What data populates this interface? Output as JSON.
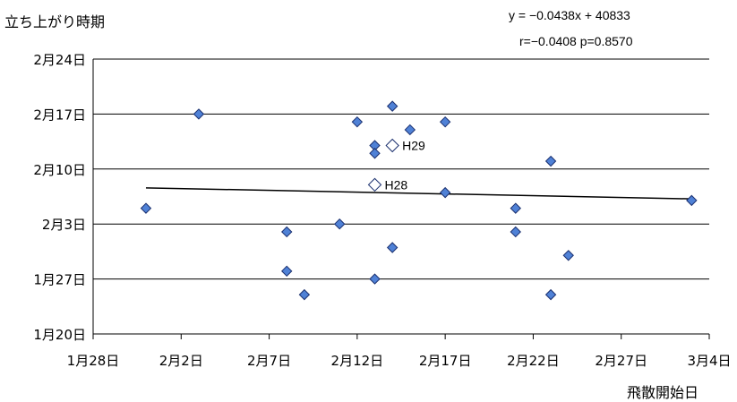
{
  "chart_data": {
    "type": "scatter",
    "ylabel": "立ち上がり時期",
    "xlabel": "飛散開始日",
    "equation": "y = −0.0438x + 40833",
    "stats": "r=−0.0408 p=0.8570",
    "x_ticks": [
      "1月28日",
      "2月2日",
      "2月7日",
      "2月12日",
      "2月17日",
      "2月22日",
      "2月27日",
      "3月4日"
    ],
    "y_ticks": [
      "2月24日",
      "2月17日",
      "2月10日",
      "2月3日",
      "1月27日",
      "1月20日"
    ],
    "xlim_days": [
      0,
      35
    ],
    "ylim_days": [
      0,
      35
    ],
    "x_axis_origin": "1月28日",
    "y_axis_origin": "1月20日",
    "grid": "horizontal",
    "points": [
      {
        "x": 3,
        "y": 16
      },
      {
        "x": 6,
        "y": 28
      },
      {
        "x": 11,
        "y": 13
      },
      {
        "x": 11,
        "y": 8
      },
      {
        "x": 12,
        "y": 5
      },
      {
        "x": 14,
        "y": 14
      },
      {
        "x": 15,
        "y": 27
      },
      {
        "x": 16,
        "y": 7
      },
      {
        "x": 16,
        "y": 24
      },
      {
        "x": 16,
        "y": 23
      },
      {
        "x": 17,
        "y": 29
      },
      {
        "x": 17,
        "y": 11
      },
      {
        "x": 18,
        "y": 26
      },
      {
        "x": 20,
        "y": 27
      },
      {
        "x": 20,
        "y": 18
      },
      {
        "x": 24,
        "y": 16
      },
      {
        "x": 24,
        "y": 13
      },
      {
        "x": 26,
        "y": 22
      },
      {
        "x": 26,
        "y": 5
      },
      {
        "x": 27,
        "y": 10
      },
      {
        "x": 34,
        "y": 17
      }
    ],
    "highlighted": [
      {
        "label": "H29",
        "x": 17,
        "y": 24
      },
      {
        "label": "H28",
        "x": 16,
        "y": 19
      }
    ],
    "trendline": {
      "x": [
        3,
        34
      ],
      "y": [
        18.6,
        17.2
      ]
    },
    "colors": {
      "marker_fill": "#4f81d6",
      "marker_stroke": "#1a2f6e",
      "highlight_fill": "#ffffff",
      "highlight_stroke": "#1a2f6e",
      "grid": "#000000",
      "trendline": "#000000"
    }
  }
}
